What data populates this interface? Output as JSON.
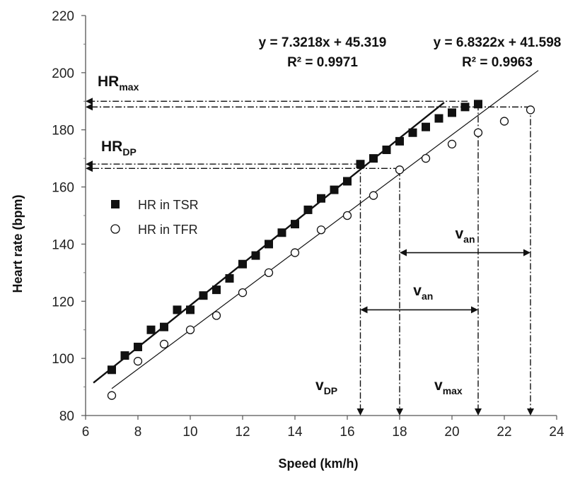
{
  "chart_data": {
    "type": "scatter",
    "xlabel": "Speed (km/h)",
    "ylabel": "Heart rate (bpm)",
    "xlim": [
      6,
      24
    ],
    "ylim": [
      80,
      220
    ],
    "xticks": [
      6,
      8,
      10,
      12,
      14,
      16,
      18,
      20,
      22,
      24
    ],
    "yticks": [
      80,
      100,
      120,
      140,
      160,
      180,
      200,
      220
    ],
    "grid": false,
    "legend_placement": "left-middle",
    "series": [
      {
        "name": "HR in TSR",
        "marker": "filled-square",
        "color": "#111111",
        "x": [
          7,
          7.5,
          8,
          8.5,
          9,
          9.5,
          10,
          10.5,
          11,
          11.5,
          12,
          12.5,
          13,
          13.5,
          14,
          14.5,
          15,
          15.5,
          16,
          16.5,
          17,
          17.5,
          18,
          18.5,
          19,
          19.5,
          20,
          20.5,
          21
        ],
        "y": [
          96,
          101,
          104,
          110,
          111,
          117,
          117,
          122,
          124,
          128,
          133,
          136,
          140,
          144,
          147,
          152,
          156,
          159,
          162,
          168,
          170,
          173,
          176,
          179,
          181,
          184,
          186,
          188,
          189
        ]
      },
      {
        "name": "HR in TFR",
        "marker": "open-circle",
        "color": "#111111",
        "x": [
          7,
          8,
          9,
          10,
          11,
          12,
          13,
          14,
          15,
          16,
          17,
          18,
          19,
          20,
          21,
          22,
          23
        ],
        "y": [
          87,
          99,
          105,
          110,
          115,
          123,
          130,
          137,
          145,
          150,
          157,
          166,
          170,
          175,
          179,
          183,
          187
        ]
      }
    ],
    "trendlines": [
      {
        "slope": 7.3218,
        "intercept": 45.319,
        "x_range": [
          6.3,
          19.7
        ],
        "width": 2.4,
        "equation": "y = 7.3218x + 45.319",
        "r2": "R² = 0.9971"
      },
      {
        "slope": 6.8322,
        "intercept": 41.598,
        "x_range": [
          7,
          23.3
        ],
        "width": 1.2,
        "equation": "y = 6.8322x + 41.598",
        "r2": "R² = 0.9963"
      }
    ],
    "reference_lines": {
      "hr_max": [
        {
          "y": 190,
          "x_end": 20.6
        },
        {
          "y": 188,
          "x_end": 23
        }
      ],
      "hr_dp": [
        {
          "y": 168,
          "x_end": 16.5
        },
        {
          "y": 166.5,
          "x_end": 18
        }
      ],
      "verticals": [
        {
          "x": 16.5,
          "y_top": 168
        },
        {
          "x": 18,
          "y_top": 166
        },
        {
          "x": 21,
          "y_top": 189
        },
        {
          "x": 23,
          "y_top": 188
        }
      ]
    },
    "intervals": [
      {
        "label": "v",
        "sub": "an",
        "x_from": 18,
        "x_to": 23,
        "y": 137,
        "label_x": 20.5,
        "label_y": 142
      },
      {
        "label": "v",
        "sub": "an",
        "x_from": 16.5,
        "x_to": 21,
        "y": 117,
        "label_x": 18.9,
        "label_y": 122
      }
    ],
    "annotations": {
      "hr_max": {
        "main": "HR",
        "sub": "max"
      },
      "hr_dp": {
        "main": "HR",
        "sub": "DP"
      },
      "v_dp": {
        "main": "v",
        "sub": "DP"
      },
      "v_max": {
        "main": "v",
        "sub": "max"
      }
    }
  }
}
